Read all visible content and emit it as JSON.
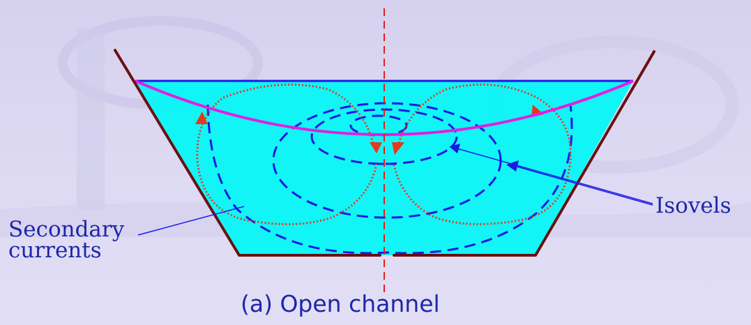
{
  "labels": {
    "secondary_line1": "Secondary",
    "secondary_line2": "currents",
    "isovels": "Isovels"
  },
  "caption": "(a) Open channel",
  "colors": {
    "background": "#DCD8F2",
    "water": "#00F7F7",
    "channel_wall": "#6B1010",
    "water_surface": "#1A1AE6",
    "isovel_lines": "#1A1AE6",
    "secondary_currents": "#E23A1A",
    "curved_surface": "#E020E0",
    "centerline": "#E02020",
    "label_text": "#1C27A8"
  }
}
